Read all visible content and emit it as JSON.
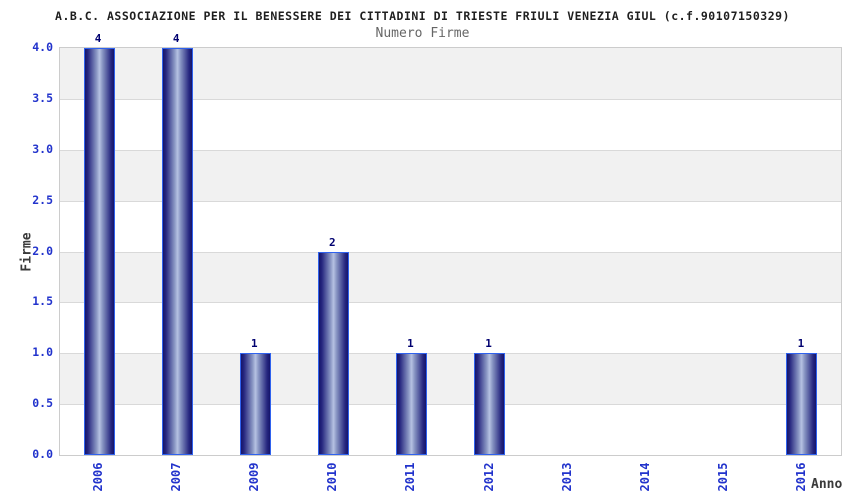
{
  "chart_data": {
    "type": "bar",
    "title": "A.B.C. ASSOCIAZIONE PER IL BENESSERE DEI CITTADINI DI TRIESTE FRIULI VENEZIA GIUL (c.f.90107150329)",
    "subtitle": "Numero Firme",
    "xlabel": "Anno",
    "ylabel": "Firme",
    "categories": [
      "2006",
      "2007",
      "2009",
      "2010",
      "2011",
      "2012",
      "2013",
      "2014",
      "2015",
      "2016"
    ],
    "values": [
      4,
      4,
      1,
      2,
      1,
      1,
      0,
      0,
      0,
      1
    ],
    "ylim": [
      0,
      4
    ],
    "ytick_labels": [
      "0.0",
      "0.5",
      "1.0",
      "1.5",
      "2.0",
      "2.5",
      "3.0",
      "3.5",
      "4.0"
    ],
    "legend": "none",
    "grid": "alternating horizontal bands every 0.5 with light gridlines, top band gray",
    "bar_value_labels_shown_for_nonzero_only": true,
    "colors": {
      "tick_label": "#2233cc",
      "bar_value_label": "#000070",
      "bar_border": "#2f62ee",
      "bar_dark": "#15156b",
      "bar_light": "#b6c2e2",
      "band_gray": "#f1f1f1",
      "gridline": "#d9d9d9",
      "plot_border": "#cccccc",
      "title_color": "#1f1f1f",
      "subtitle_color": "#666666",
      "axis_title_color": "#3a3a3a"
    }
  }
}
